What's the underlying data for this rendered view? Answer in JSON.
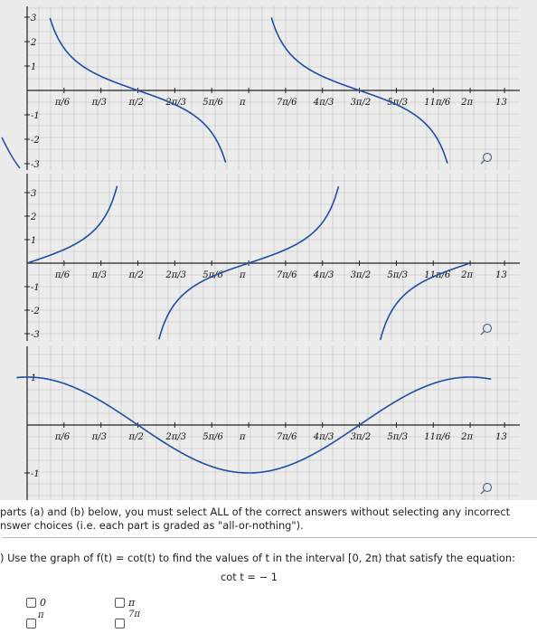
{
  "graphs": [
    {
      "y_ticks": [
        "3",
        "2",
        "1",
        "-1",
        "-2",
        "-3"
      ],
      "x_ticks": [
        "π/6",
        "π/3",
        "π/2",
        "2π/3",
        "5π/6",
        "π",
        "7π/6",
        "4π/3",
        "3π/2",
        "5π/3",
        "11π/6",
        "2π",
        "13"
      ],
      "zoom_icon": "zoom-in-icon"
    },
    {
      "y_ticks": [
        "3",
        "2",
        "1",
        "-1",
        "-2",
        "-3"
      ],
      "x_ticks": [
        "π/6",
        "π/3",
        "π/2",
        "2π/3",
        "5π/6",
        "π",
        "7π/6",
        "4π/3",
        "3π/2",
        "5π/3",
        "11π/6",
        "2π",
        "13"
      ],
      "zoom_icon": "zoom-in-icon"
    },
    {
      "y_ticks": [
        "1",
        "-1"
      ],
      "x_ticks": [
        "π/6",
        "π/3",
        "π/2",
        "2π/3",
        "5π/6",
        "π",
        "7π/6",
        "4π/3",
        "3π/2",
        "5π/3",
        "11π/6",
        "2π",
        "13"
      ],
      "zoom_icon": "zoom-in-icon"
    }
  ],
  "intro_line1": "parts (a) and (b) below, you must select ALL of the correct answers without selecting any incorrect",
  "intro_line2": "nswer choices (i.e. each part is graded as \"all-or-nothing\").",
  "question": ") Use the graph of f(t) = cot(t) to find the values of t in the interval [0, 2π) that satisfy the equation:",
  "equation": "cot t = − 1",
  "options": [
    "0",
    "π",
    "π",
    "7π"
  ],
  "colors": {
    "curve": "#1f4fa3",
    "axis": "#222222",
    "grid": "#bdbdbd",
    "background": "#ececec"
  }
}
